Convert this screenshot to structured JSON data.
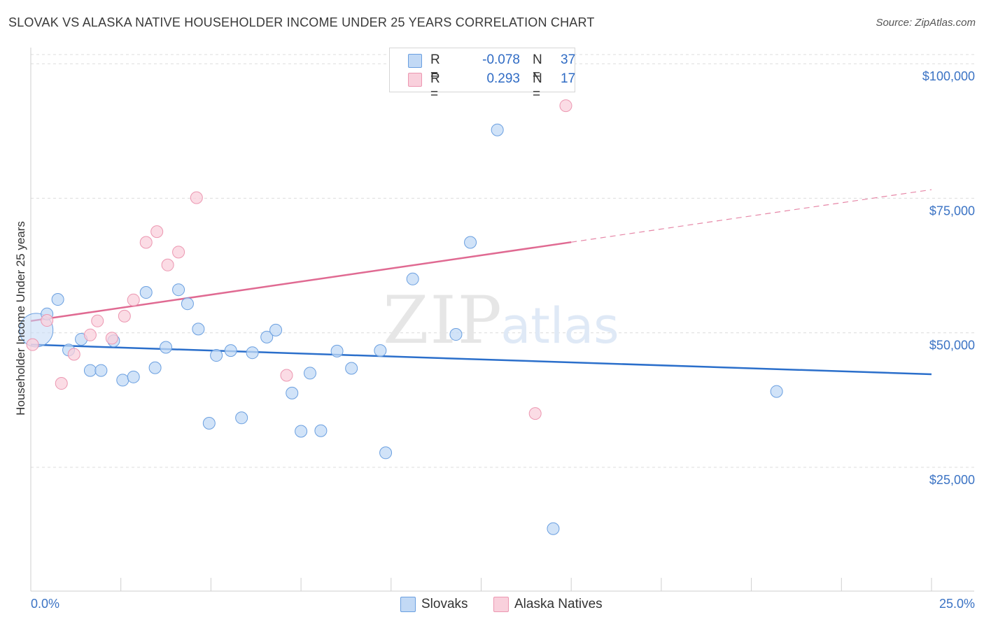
{
  "title": "SLOVAK VS ALASKA NATIVE HOUSEHOLDER INCOME UNDER 25 YEARS CORRELATION CHART",
  "source": "Source: ZipAtlas.com",
  "watermark": {
    "zip": "ZIP",
    "atlas": "atlas"
  },
  "legend_top": {
    "rows": [
      {
        "r_label": "R =",
        "r_value": "-0.078",
        "n_label": "N =",
        "n_value": "37",
        "color": "#b8d3f4"
      },
      {
        "r_label": "R =",
        "r_value": "0.293",
        "n_label": "N =",
        "n_value": "17",
        "color": "#f8c6d5"
      }
    ]
  },
  "legend_bottom": [
    {
      "label": "Slovaks",
      "color": "#b8d3f4"
    },
    {
      "label": "Alaska Natives",
      "color": "#f8c6d5"
    }
  ],
  "chart_data": {
    "type": "scatter",
    "title": "SLOVAK VS ALASKA NATIVE HOUSEHOLDER INCOME UNDER 25 YEARS CORRELATION CHART",
    "xlabel": "",
    "ylabel": "Householder Income Under 25 years",
    "xlim": [
      0,
      25
    ],
    "ylim": [
      2000,
      103000
    ],
    "x_tick_labels": [
      {
        "x": 0,
        "label": "0.0%"
      },
      {
        "x": 25,
        "label": "25.0%"
      }
    ],
    "x_minor_ticks": [
      2.5,
      5,
      7.5,
      10,
      12.5,
      15,
      17.5,
      20,
      22.5,
      25
    ],
    "y_ticks": [
      {
        "y": 25000,
        "label": "$25,000"
      },
      {
        "y": 50000,
        "label": "$50,000"
      },
      {
        "y": 75000,
        "label": "$75,000"
      },
      {
        "y": 100000,
        "label": "$100,000"
      }
    ],
    "grid": "horizontal dashed",
    "legend_placement": "top-center and bottom",
    "series": [
      {
        "name": "Slovaks",
        "color": "#6a9fe0",
        "fill": "#c2d9f5",
        "trend_color": "#2b6fcb",
        "trend": {
          "x0": 0,
          "y0": 47800,
          "x1": 25,
          "y1": 42300,
          "dashed_from": null
        },
        "points": [
          {
            "x": 0.15,
            "y": 50500,
            "big": true
          },
          {
            "x": 0.45,
            "y": 53500
          },
          {
            "x": 0.75,
            "y": 56200
          },
          {
            "x": 1.05,
            "y": 46800
          },
          {
            "x": 1.4,
            "y": 48800
          },
          {
            "x": 1.65,
            "y": 43000
          },
          {
            "x": 1.95,
            "y": 43000
          },
          {
            "x": 2.3,
            "y": 48500
          },
          {
            "x": 2.55,
            "y": 41200
          },
          {
            "x": 2.85,
            "y": 41800
          },
          {
            "x": 3.2,
            "y": 57500
          },
          {
            "x": 3.45,
            "y": 43500
          },
          {
            "x": 3.75,
            "y": 47300
          },
          {
            "x": 4.1,
            "y": 58000
          },
          {
            "x": 4.35,
            "y": 55400
          },
          {
            "x": 4.65,
            "y": 50700
          },
          {
            "x": 4.95,
            "y": 33200
          },
          {
            "x": 5.15,
            "y": 45800
          },
          {
            "x": 5.55,
            "y": 46700
          },
          {
            "x": 5.85,
            "y": 34200
          },
          {
            "x": 6.15,
            "y": 46300
          },
          {
            "x": 6.55,
            "y": 49200
          },
          {
            "x": 6.8,
            "y": 50500
          },
          {
            "x": 7.25,
            "y": 38800
          },
          {
            "x": 7.5,
            "y": 31700
          },
          {
            "x": 7.75,
            "y": 42500
          },
          {
            "x": 8.05,
            "y": 31800
          },
          {
            "x": 8.5,
            "y": 46600
          },
          {
            "x": 8.9,
            "y": 43400
          },
          {
            "x": 9.7,
            "y": 46700
          },
          {
            "x": 9.85,
            "y": 27700
          },
          {
            "x": 10.6,
            "y": 60000
          },
          {
            "x": 11.8,
            "y": 49700
          },
          {
            "x": 12.2,
            "y": 66800
          },
          {
            "x": 12.95,
            "y": 87700
          },
          {
            "x": 14.5,
            "y": 13600
          },
          {
            "x": 20.7,
            "y": 39100
          }
        ]
      },
      {
        "name": "Alaska Natives",
        "color": "#ec97b1",
        "fill": "#f9d0dc",
        "trend_color": "#e06a92",
        "trend": {
          "x0": 0,
          "y0": 52200,
          "x1": 25,
          "y1": 76600,
          "dashed_from": 15
        },
        "points": [
          {
            "x": 0.05,
            "y": 47800
          },
          {
            "x": 0.45,
            "y": 52300
          },
          {
            "x": 0.85,
            "y": 40600
          },
          {
            "x": 1.2,
            "y": 46000
          },
          {
            "x": 1.65,
            "y": 49600
          },
          {
            "x": 1.85,
            "y": 52200
          },
          {
            "x": 2.25,
            "y": 49000
          },
          {
            "x": 2.6,
            "y": 53100
          },
          {
            "x": 2.85,
            "y": 56100
          },
          {
            "x": 3.2,
            "y": 66800
          },
          {
            "x": 3.5,
            "y": 68800
          },
          {
            "x": 3.8,
            "y": 62600
          },
          {
            "x": 4.1,
            "y": 65000
          },
          {
            "x": 4.6,
            "y": 75100
          },
          {
            "x": 7.1,
            "y": 42100
          },
          {
            "x": 14.0,
            "y": 35000
          },
          {
            "x": 14.85,
            "y": 92200
          }
        ]
      }
    ]
  }
}
